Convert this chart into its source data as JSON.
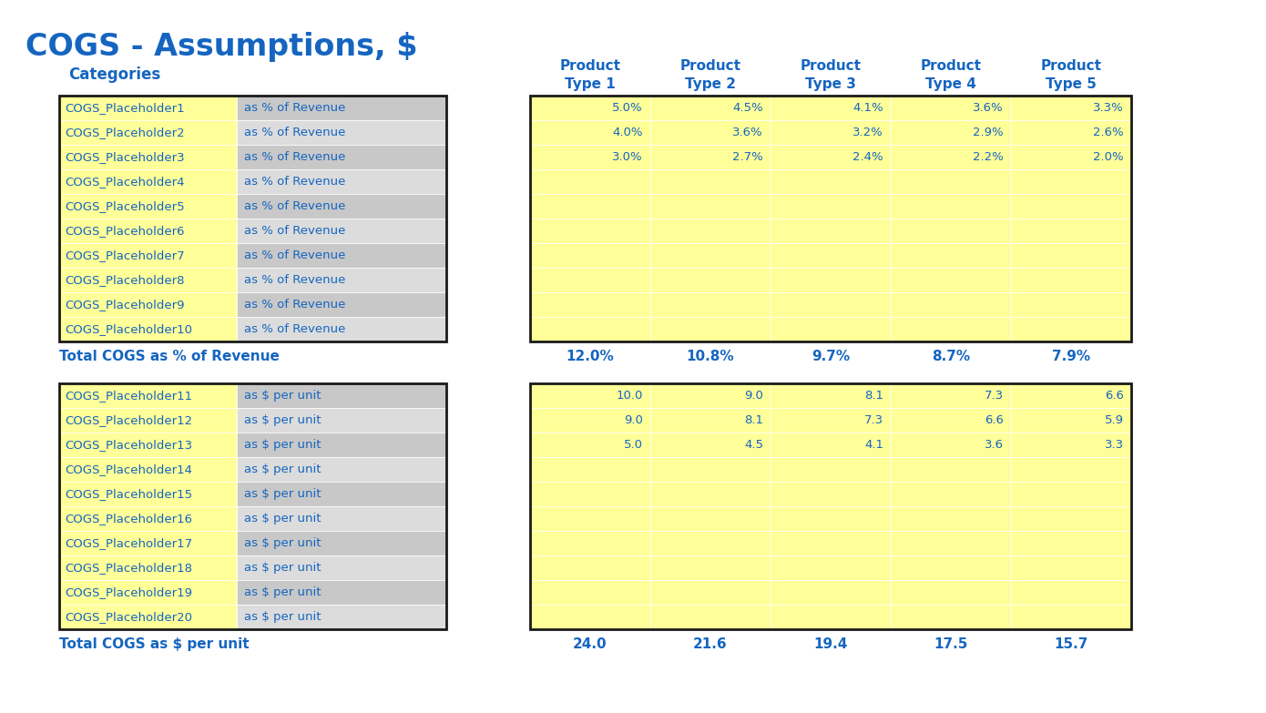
{
  "title": "COGS - Assumptions, $",
  "title_color": "#1565C0",
  "header_label": "Categories",
  "product_headers": [
    "Product\nType 1",
    "Product\nType 2",
    "Product\nType 3",
    "Product\nType 4",
    "Product\nType 5"
  ],
  "section1_rows": [
    [
      "COGS_Placeholder1",
      "as % of Revenue"
    ],
    [
      "COGS_Placeholder2",
      "as % of Revenue"
    ],
    [
      "COGS_Placeholder3",
      "as % of Revenue"
    ],
    [
      "COGS_Placeholder4",
      "as % of Revenue"
    ],
    [
      "COGS_Placeholder5",
      "as % of Revenue"
    ],
    [
      "COGS_Placeholder6",
      "as % of Revenue"
    ],
    [
      "COGS_Placeholder7",
      "as % of Revenue"
    ],
    [
      "COGS_Placeholder8",
      "as % of Revenue"
    ],
    [
      "COGS_Placeholder9",
      "as % of Revenue"
    ],
    [
      "COGS_Placeholder10",
      "as % of Revenue"
    ]
  ],
  "section1_data": [
    [
      "5.0%",
      "4.5%",
      "4.1%",
      "3.6%",
      "3.3%"
    ],
    [
      "4.0%",
      "3.6%",
      "3.2%",
      "2.9%",
      "2.6%"
    ],
    [
      "3.0%",
      "2.7%",
      "2.4%",
      "2.2%",
      "2.0%"
    ],
    [
      "",
      "",
      "",
      "",
      ""
    ],
    [
      "",
      "",
      "",
      "",
      ""
    ],
    [
      "",
      "",
      "",
      "",
      ""
    ],
    [
      "",
      "",
      "",
      "",
      ""
    ],
    [
      "",
      "",
      "",
      "",
      ""
    ],
    [
      "",
      "",
      "",
      "",
      ""
    ],
    [
      "",
      "",
      "",
      "",
      ""
    ]
  ],
  "section1_total_label": "Total COGS as % of Revenue",
  "section1_total_data": [
    "12.0%",
    "10.8%",
    "9.7%",
    "8.7%",
    "7.9%"
  ],
  "section2_rows": [
    [
      "COGS_Placeholder11",
      "as $ per unit"
    ],
    [
      "COGS_Placeholder12",
      "as $ per unit"
    ],
    [
      "COGS_Placeholder13",
      "as $ per unit"
    ],
    [
      "COGS_Placeholder14",
      "as $ per unit"
    ],
    [
      "COGS_Placeholder15",
      "as $ per unit"
    ],
    [
      "COGS_Placeholder16",
      "as $ per unit"
    ],
    [
      "COGS_Placeholder17",
      "as $ per unit"
    ],
    [
      "COGS_Placeholder18",
      "as $ per unit"
    ],
    [
      "COGS_Placeholder19",
      "as $ per unit"
    ],
    [
      "COGS_Placeholder20",
      "as $ per unit"
    ]
  ],
  "section2_data": [
    [
      "10.0",
      "9.0",
      "8.1",
      "7.3",
      "6.6"
    ],
    [
      "9.0",
      "8.1",
      "7.3",
      "6.6",
      "5.9"
    ],
    [
      "5.0",
      "4.5",
      "4.1",
      "3.6",
      "3.3"
    ],
    [
      "",
      "",
      "",
      "",
      ""
    ],
    [
      "",
      "",
      "",
      "",
      ""
    ],
    [
      "",
      "",
      "",
      "",
      ""
    ],
    [
      "",
      "",
      "",
      "",
      ""
    ],
    [
      "",
      "",
      "",
      "",
      ""
    ],
    [
      "",
      "",
      "",
      "",
      ""
    ],
    [
      "",
      "",
      "",
      "",
      ""
    ]
  ],
  "section2_total_label": "Total COGS as $ per unit",
  "section2_total_data": [
    "24.0",
    "21.6",
    "19.4",
    "17.5",
    "15.7"
  ],
  "yellow_color": "#FFFF99",
  "gray_color": "#C8C8C8",
  "light_gray_color": "#DCDCDC",
  "blue_color": "#1565C0",
  "border_color": "#1a1a1a",
  "white_color": "#FFFFFF",
  "bg_color": "#FFFFFF"
}
